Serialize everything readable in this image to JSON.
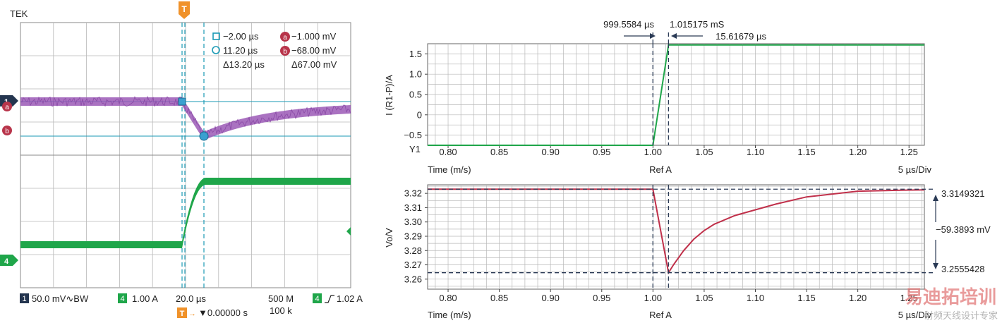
{
  "scope": {
    "brand": "TEK",
    "trigger_marker": "T",
    "cursors": {
      "c1_time": "−2.00 µs",
      "c2_time": "11.20 µs",
      "delta_time": "Δ13.20 µs",
      "a_value": "−1.000 mV",
      "b_value": "−68.00 mV",
      "delta_value": "Δ67.00 mV",
      "a_label": "a",
      "b_label": "b"
    },
    "channel_markers": {
      "ch1": "1",
      "ch4": "4"
    },
    "footer": {
      "ch1_badge": "1",
      "ch1_setting": "50.0 mV∿BW",
      "ch4_badge": "4",
      "ch4_setting": "1.00 A",
      "timebase": "20.0 µs",
      "sample_rate": "500 M",
      "record_length": "100 k",
      "trig_badge": "4",
      "trig_level": "1.02 A",
      "trig_pos_badge": "T",
      "trig_delay": "▼0.00000 s"
    },
    "colors": {
      "ch1": "#9b59b6",
      "ch4": "#1fa64a",
      "cursor": "#1a9ab5",
      "grid": "#b8b8b8",
      "badge_dark": "#24354f",
      "badge_red": "#b8344a",
      "trigger": "#f0922a"
    }
  },
  "sim": {
    "top": {
      "ylabel": "I (R1-P)/A",
      "y_marker": "Y1",
      "xlabel": "Time (m/s)",
      "ref": "Ref A",
      "div": "5 µs/Div",
      "yticks": [
        "1.5",
        "1.0",
        "0.5",
        "0",
        "−0.5"
      ],
      "xticks": [
        "0.80",
        "0.85",
        "0.90",
        "0.95",
        "1.00",
        "1.05",
        "1.10",
        "1.15",
        "1.20",
        "1.25"
      ],
      "cursor_a": "999.5584 µs",
      "cursor_b": "1.015175 mS",
      "cursor_delta": "15.61679 µs"
    },
    "bottom": {
      "ylabel": "Vo/V",
      "xlabel": "Time (m/s)",
      "ref": "Ref A",
      "div": "5 µs/Div",
      "yticks": [
        "3.32",
        "3.31",
        "3.30",
        "3.29",
        "3.28",
        "3.27",
        "3.26"
      ],
      "xticks": [
        "0.80",
        "0.85",
        "0.90",
        "0.95",
        "1.00",
        "1.05",
        "1.10",
        "1.15",
        "1.20",
        "1.25"
      ],
      "level_high": "3.3149321",
      "level_delta": "−59.3893 mV",
      "level_low": "3.2555428"
    },
    "colors": {
      "current": "#1fa64a",
      "voltage": "#c0304a",
      "grid": "#b8b8b8",
      "cursor": "#2a3a55"
    }
  },
  "watermark": {
    "title": "易迪拓培训",
    "subtitle": "射频天线设计专家"
  },
  "chart_data": [
    {
      "type": "line",
      "title": "",
      "xlabel": "Time (m/s)",
      "ylabel": "I (R1-P)/A",
      "xlim": [
        0.78,
        1.265
      ],
      "ylim": [
        -0.75,
        1.75
      ],
      "grid": true,
      "series": [
        {
          "x": [
            0.78,
            0.99996,
            1.0152,
            1.265
          ],
          "y": [
            -0.75,
            -0.75,
            1.72,
            1.72
          ]
        }
      ]
    },
    {
      "type": "line",
      "title": "",
      "xlabel": "Time (m/s)",
      "ylabel": "Vo/V",
      "xlim": [
        0.78,
        1.265
      ],
      "ylim": [
        3.253,
        3.326
      ],
      "grid": true,
      "series": [
        {
          "x": [
            0.78,
            1.0,
            1.0152,
            1.02,
            1.03,
            1.04,
            1.05,
            1.06,
            1.08,
            1.1,
            1.12,
            1.15,
            1.2,
            1.25,
            1.265
          ],
          "y": [
            3.3229,
            3.3229,
            3.2645,
            3.27,
            3.28,
            3.288,
            3.294,
            3.2985,
            3.3045,
            3.3085,
            3.3125,
            3.3175,
            3.3215,
            3.3223,
            3.3224
          ]
        }
      ]
    }
  ]
}
